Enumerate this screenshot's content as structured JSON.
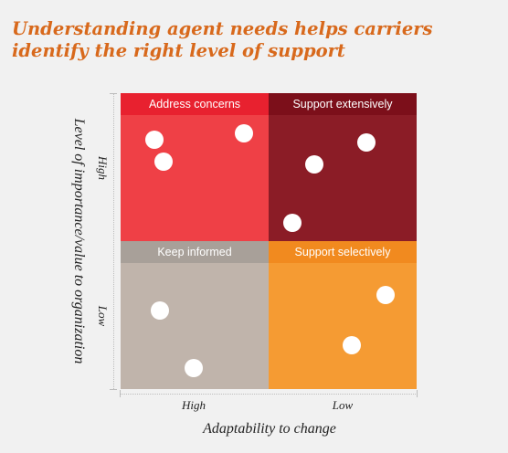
{
  "title": {
    "line1": "Understanding agent needs helps carriers",
    "line2": "identify the right level of support"
  },
  "axes": {
    "y_label": "Level of importance/value to organization",
    "y_ticks": {
      "high": "High",
      "low": "Low"
    },
    "x_label": "Adaptability to change",
    "x_ticks": {
      "high": "High",
      "low": "Low"
    }
  },
  "quadrants": [
    {
      "label": "Address concerns",
      "position": "top-left",
      "header_color": "#e8212f",
      "body_color": "#ef4046",
      "dot_count": 3
    },
    {
      "label": "Support extensively",
      "position": "top-right",
      "header_color": "#7c0f1a",
      "body_color": "#8b1c26",
      "dot_count": 3
    },
    {
      "label": "Keep informed",
      "position": "bottom-left",
      "header_color": "#a8a099",
      "body_color": "#c0b4ab",
      "dot_count": 2
    },
    {
      "label": "Support selectively",
      "position": "bottom-right",
      "header_color": "#f18a1f",
      "body_color": "#f59b33",
      "dot_count": 2
    }
  ],
  "colors": {
    "title": "#d8691c",
    "background": "#f1f1f1",
    "dot": "#ffffff"
  }
}
